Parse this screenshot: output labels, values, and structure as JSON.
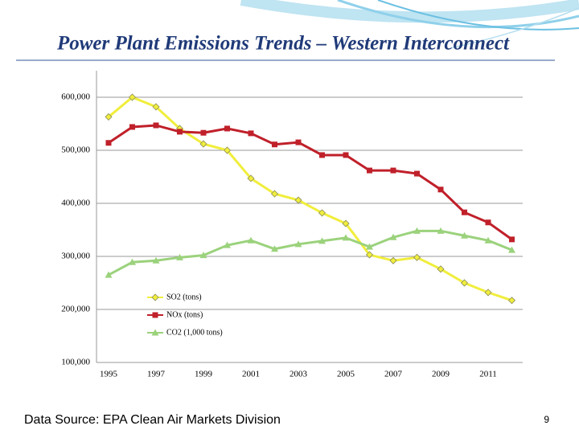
{
  "chart_data": {
    "type": "line",
    "title": "Power Plant Emissions Trends – Western Interconnect",
    "source": "Data Source: EPA Clean Air Markets Division",
    "categories": [
      "1995",
      null,
      "1997",
      null,
      "1999",
      null,
      "2001",
      null,
      "2003",
      null,
      "2005",
      null,
      "2007",
      null,
      "2009",
      null,
      "2011",
      null
    ],
    "series": [
      {
        "name": "SO2 (tons)",
        "color": "#f0ee3c",
        "marker": "diamond",
        "values": [
          563000,
          600000,
          582000,
          541000,
          512000,
          500000,
          447000,
          418000,
          406000,
          382000,
          362000,
          303000,
          292000,
          298000,
          276000,
          250000,
          232000,
          217000
        ]
      },
      {
        "name": "NOx (tons)",
        "color": "#c0202a",
        "marker": "square",
        "values": [
          514000,
          544000,
          547000,
          535000,
          533000,
          541000,
          532000,
          511000,
          515000,
          491000,
          491000,
          462000,
          462000,
          456000,
          426000,
          383000,
          364000,
          332000
        ]
      },
      {
        "name": "CO2 (1,000 tons)",
        "color": "#9bd27c",
        "marker": "triangle",
        "values": [
          265000,
          289000,
          292000,
          298000,
          302000,
          321000,
          330000,
          314000,
          323000,
          329000,
          335000,
          318000,
          336000,
          348000,
          348000,
          339000,
          330000,
          312000
        ]
      }
    ],
    "ylim": [
      100000,
      650000
    ],
    "yticks": [
      {
        "value": 100000,
        "label": "100,000"
      },
      {
        "value": 200000,
        "label": "200,000"
      },
      {
        "value": 300000,
        "label": "300,000"
      },
      {
        "value": 400000,
        "label": "400,000"
      },
      {
        "value": 500000,
        "label": "500,000"
      },
      {
        "value": 600000,
        "label": "600,000"
      }
    ],
    "grid": true
  },
  "page_number": "9"
}
